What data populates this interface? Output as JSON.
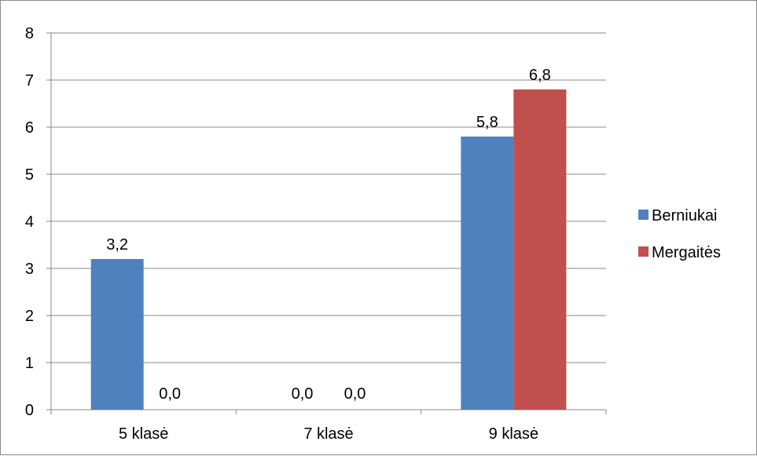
{
  "chart_data": {
    "type": "bar",
    "categories": [
      "5 klasė",
      "7 klasė",
      "9 klasė"
    ],
    "series": [
      {
        "name": "Berniukai",
        "values": [
          3.2,
          0.0,
          5.8
        ],
        "labels": [
          "3,2",
          "0,0",
          "5,8"
        ],
        "color": "#4f81bd"
      },
      {
        "name": "Mergaitės",
        "values": [
          0.0,
          0.0,
          6.8
        ],
        "labels": [
          "0,0",
          "0,0",
          "6,8"
        ],
        "color": "#c0504d"
      }
    ],
    "ylim": [
      0,
      8
    ],
    "yticks": [
      "0",
      "1",
      "2",
      "3",
      "4",
      "5",
      "6",
      "7",
      "8"
    ],
    "grid": true,
    "legend_position": "right",
    "title": "",
    "xlabel": "",
    "ylabel": ""
  }
}
